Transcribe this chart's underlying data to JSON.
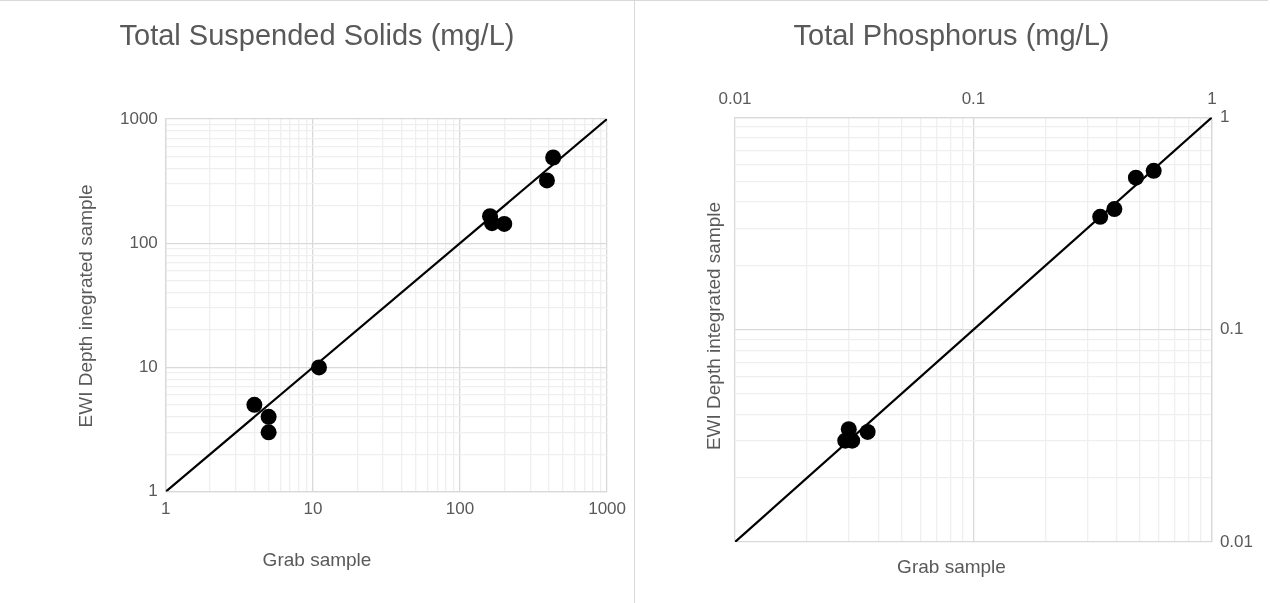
{
  "chart_data": [
    {
      "type": "scatter",
      "title": "Total Suspended Solids (mg/L)",
      "xlabel": "Grab sample",
      "ylabel": "EWI Depth inegrated sample",
      "log": "xy",
      "grid": true,
      "xlim": [
        1,
        1000
      ],
      "ylim": [
        1,
        1000
      ],
      "xticks": [
        1,
        {
          "value": 2,
          "label": null
        },
        {
          "value": 3,
          "label": null
        },
        {
          "value": 4,
          "label": null
        },
        {
          "value": 5,
          "label": null
        },
        {
          "value": 6,
          "label": null
        },
        {
          "value": 7,
          "label": null
        },
        {
          "value": 8,
          "label": null
        },
        {
          "value": 9,
          "label": null
        },
        10,
        {
          "value": 20,
          "label": null
        },
        {
          "value": 30,
          "label": null
        },
        {
          "value": 40,
          "label": null
        },
        {
          "value": 50,
          "label": null
        },
        {
          "value": 60,
          "label": null
        },
        {
          "value": 70,
          "label": null
        },
        {
          "value": 80,
          "label": null
        },
        {
          "value": 90,
          "label": null
        },
        100,
        {
          "value": 200,
          "label": null
        },
        {
          "value": 300,
          "label": null
        },
        {
          "value": 400,
          "label": null
        },
        {
          "value": 500,
          "label": null
        },
        {
          "value": 600,
          "label": null
        },
        {
          "value": 700,
          "label": null
        },
        {
          "value": 800,
          "label": null
        },
        {
          "value": 900,
          "label": null
        },
        1000
      ],
      "yticks": [
        1,
        {
          "value": 2,
          "label": null
        },
        {
          "value": 3,
          "label": null
        },
        {
          "value": 4,
          "label": null
        },
        {
          "value": 5,
          "label": null
        },
        {
          "value": 6,
          "label": null
        },
        {
          "value": 7,
          "label": null
        },
        {
          "value": 8,
          "label": null
        },
        {
          "value": 9,
          "label": null
        },
        10,
        {
          "value": 20,
          "label": null
        },
        {
          "value": 30,
          "label": null
        },
        {
          "value": 40,
          "label": null
        },
        {
          "value": 50,
          "label": null
        },
        {
          "value": 60,
          "label": null
        },
        {
          "value": 70,
          "label": null
        },
        {
          "value": 80,
          "label": null
        },
        {
          "value": 90,
          "label": null
        },
        100,
        {
          "value": 200,
          "label": null
        },
        {
          "value": 300,
          "label": null
        },
        {
          "value": 400,
          "label": null
        },
        {
          "value": 500,
          "label": null
        },
        {
          "value": 600,
          "label": null
        },
        {
          "value": 700,
          "label": null
        },
        {
          "value": 800,
          "label": null
        },
        {
          "value": 900,
          "label": null
        },
        1000
      ],
      "series": [
        {
          "type": "scatter",
          "marker": "circle",
          "color": "#000000",
          "x": [
            4,
            5,
            5,
            11,
            160,
            165,
            200,
            390,
            430
          ],
          "values": [
            5,
            4,
            3,
            10,
            165,
            145,
            143,
            320,
            490
          ]
        },
        {
          "type": "line",
          "color": "#000000",
          "x": [
            1,
            1000
          ],
          "values": [
            1,
            1000
          ]
        }
      ]
    },
    {
      "type": "scatter",
      "title": "Total Phosphorus (mg/L)",
      "xlabel": "Grab sample",
      "ylabel": "EWI Depth integrated sample",
      "log": "xy",
      "grid": true,
      "xlim": [
        0.01,
        1
      ],
      "ylim": [
        0.01,
        1
      ],
      "xticks": [
        0.01,
        {
          "value": 0.02,
          "label": null
        },
        {
          "value": 0.03,
          "label": null
        },
        {
          "value": 0.04,
          "label": null
        },
        {
          "value": 0.05,
          "label": null
        },
        {
          "value": 0.06,
          "label": null
        },
        {
          "value": 0.07,
          "label": null
        },
        {
          "value": 0.08,
          "label": null
        },
        {
          "value": 0.09,
          "label": null
        },
        0.1,
        {
          "value": 0.2,
          "label": null
        },
        {
          "value": 0.3,
          "label": null
        },
        {
          "value": 0.4,
          "label": null
        },
        {
          "value": 0.5,
          "label": null
        },
        {
          "value": 0.6,
          "label": null
        },
        {
          "value": 0.7,
          "label": null
        },
        {
          "value": 0.8,
          "label": null
        },
        {
          "value": 0.9,
          "label": null
        },
        1
      ],
      "yticks": [
        0.01,
        {
          "value": 0.02,
          "label": null
        },
        {
          "value": 0.03,
          "label": null
        },
        {
          "value": 0.04,
          "label": null
        },
        {
          "value": 0.05,
          "label": null
        },
        {
          "value": 0.06,
          "label": null
        },
        {
          "value": 0.07,
          "label": null
        },
        {
          "value": 0.08,
          "label": null
        },
        {
          "value": 0.09,
          "label": null
        },
        0.1,
        {
          "value": 0.2,
          "label": null
        },
        {
          "value": 0.3,
          "label": null
        },
        {
          "value": 0.4,
          "label": null
        },
        {
          "value": 0.5,
          "label": null
        },
        {
          "value": 0.6,
          "label": null
        },
        {
          "value": 0.7,
          "label": null
        },
        {
          "value": 0.8,
          "label": null
        },
        {
          "value": 0.9,
          "label": null
        },
        1
      ],
      "series": [
        {
          "type": "scatter",
          "marker": "circle",
          "color": "#000000",
          "x": [
            0.57,
            0.48,
            0.39,
            0.34,
            0.03,
            0.029,
            0.031,
            0.036
          ],
          "values": [
            0.56,
            0.52,
            0.37,
            0.34,
            0.034,
            0.03,
            0.03,
            0.033
          ]
        },
        {
          "type": "line",
          "color": "#000000",
          "x": [
            0.01,
            1
          ],
          "values": [
            0.01,
            1
          ]
        }
      ]
    }
  ]
}
